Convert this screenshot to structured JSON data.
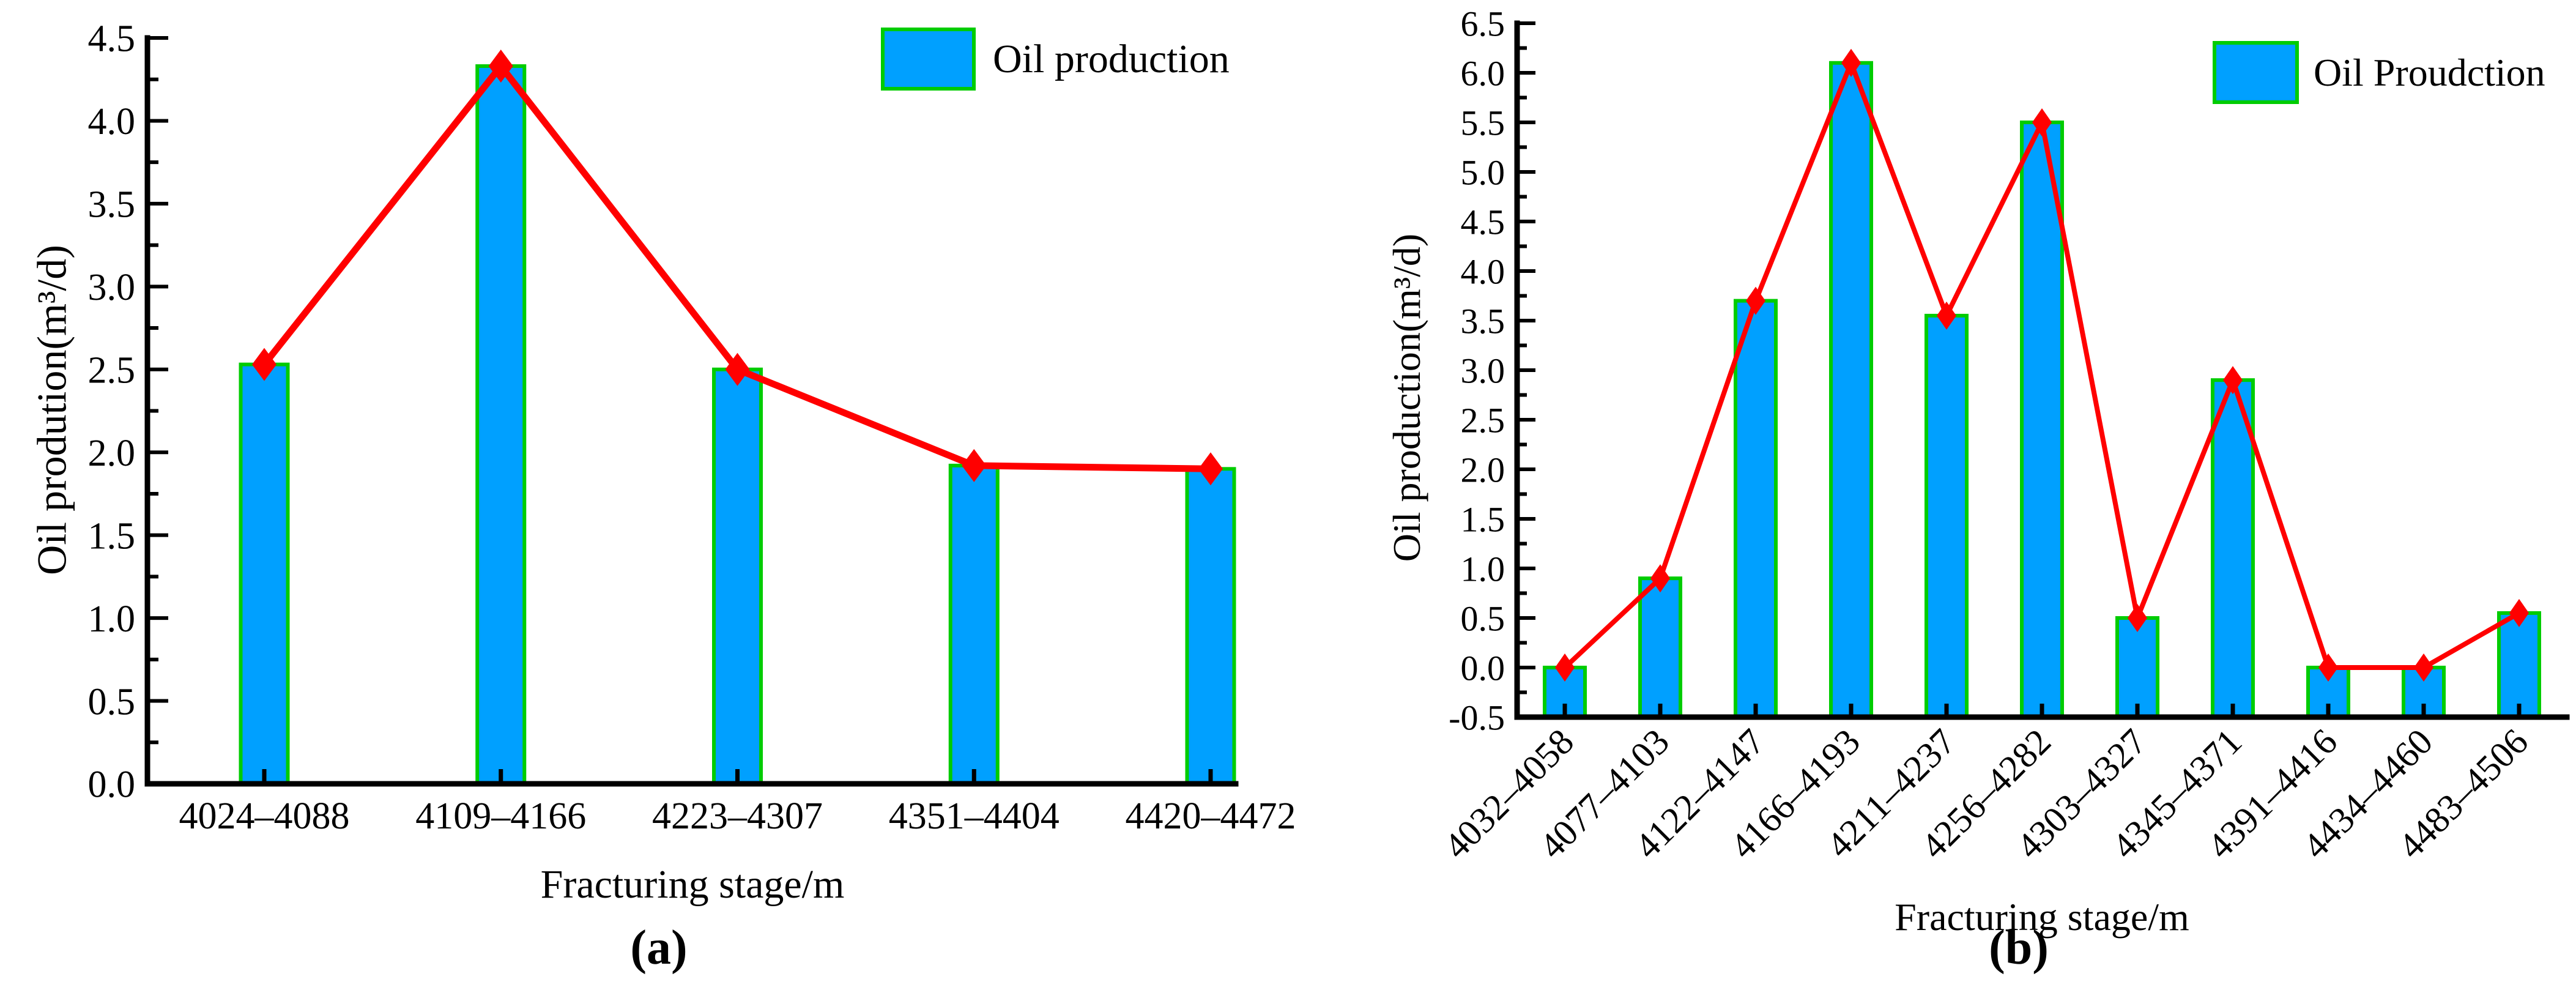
{
  "figure": {
    "captions": {
      "a": "(a)",
      "b": "(b)"
    }
  },
  "colors": {
    "bar_fill": "#00A0FF",
    "bar_edge": "#00CC00",
    "line": "#FF0000",
    "marker": "#FF0000",
    "axis": "#000000"
  },
  "chart_data": [
    {
      "id": "a",
      "type": "bar",
      "overlay": "line",
      "marker_shape": "diamond",
      "legend": "Oil production",
      "legend_position": "top-right",
      "xlabel": "Fracturing stage/m",
      "ylabel": "Oil prodution(m³/d)",
      "caption": "(a)",
      "categories": [
        "4024–4088",
        "4109–4166",
        "4223–4307",
        "4351–4404",
        "4420–4472"
      ],
      "values": [
        2.53,
        4.33,
        2.5,
        1.92,
        1.9
      ],
      "ylim": [
        0.0,
        4.5
      ],
      "ytick_step": 0.5,
      "ytick_labels": [
        "0.0",
        "0.5",
        "1.0",
        "1.5",
        "2.0",
        "2.5",
        "3.0",
        "3.5",
        "4.0",
        "4.5"
      ],
      "grid": false
    },
    {
      "id": "b",
      "type": "bar",
      "overlay": "line",
      "marker_shape": "diamond",
      "legend": "Oil Proudction",
      "legend_position": "top-right",
      "xlabel": "Fracturing stage/m",
      "ylabel": "Oil production(m³/d)",
      "caption": "(b)",
      "categories": [
        "4032–4058",
        "4077–4103",
        "4122–4147",
        "4166–4193",
        "4211–4237",
        "4256–4282",
        "4303–4327",
        "4345–4371",
        "4391–4416",
        "4434–4460",
        "4483–4506"
      ],
      "values": [
        0.0,
        0.9,
        3.7,
        6.1,
        3.55,
        5.5,
        0.5,
        2.9,
        0.0,
        0.0,
        0.55
      ],
      "ylim": [
        -0.5,
        6.5
      ],
      "ytick_step": 0.5,
      "ytick_labels": [
        "-0.5",
        "0.0",
        "0.5",
        "1.0",
        "1.5",
        "2.0",
        "2.5",
        "3.0",
        "3.5",
        "4.0",
        "4.5",
        "5.0",
        "5.5",
        "6.0",
        "6.5"
      ],
      "grid": false
    }
  ]
}
